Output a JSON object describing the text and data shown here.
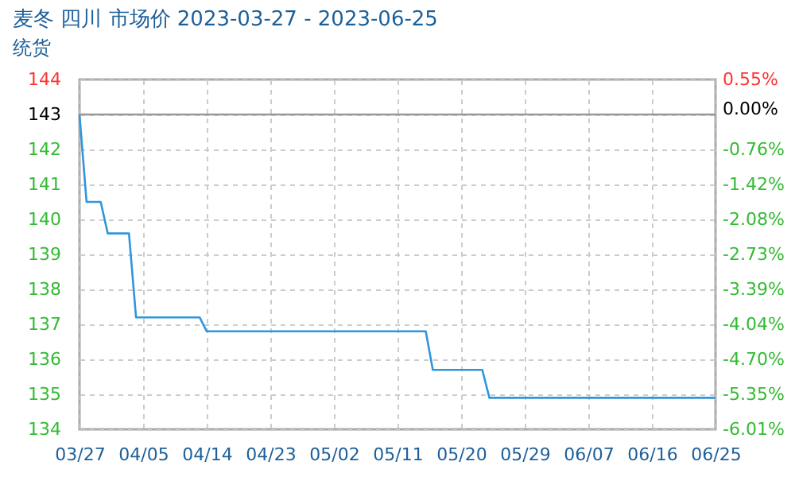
{
  "chart_data": {
    "type": "line",
    "title": "麦冬 四川 市场价 2023-03-27 - 2023-06-25",
    "subtitle": "统货",
    "x": [
      "2023-03-27",
      "2023-03-28",
      "2023-03-30",
      "2023-03-31",
      "2023-04-03",
      "2023-04-04",
      "2023-04-13",
      "2023-04-14",
      "2023-05-15",
      "2023-05-16",
      "2023-05-23",
      "2023-05-24",
      "2023-06-25"
    ],
    "series": [
      {
        "color": "#2f96dc",
        "values": [
          143,
          140.5,
          140.5,
          139.6,
          139.6,
          137.2,
          137.2,
          136.8,
          136.8,
          135.7,
          135.7,
          134.9,
          134.9
        ]
      }
    ],
    "xlim": [
      "2023-03-27",
      "2023-06-25"
    ],
    "xticks": [
      {
        "value": "2023-03-27",
        "label": "03/27"
      },
      {
        "value": "2023-04-05",
        "label": "04/05"
      },
      {
        "value": "2023-04-14",
        "label": "04/14"
      },
      {
        "value": "2023-04-23",
        "label": "04/23"
      },
      {
        "value": "2023-05-02",
        "label": "05/02"
      },
      {
        "value": "2023-05-11",
        "label": "05/11"
      },
      {
        "value": "2023-05-20",
        "label": "05/20"
      },
      {
        "value": "2023-05-29",
        "label": "05/29"
      },
      {
        "value": "2023-06-07",
        "label": "06/07"
      },
      {
        "value": "2023-06-16",
        "label": "06/16"
      },
      {
        "value": "2023-06-25",
        "label": "06/25"
      }
    ],
    "ylim": [
      134,
      144
    ],
    "yticks": [
      134,
      135,
      136,
      137,
      138,
      139,
      140,
      141,
      142,
      143,
      144
    ],
    "y2lim": [
      -6.01,
      0.55
    ],
    "y2ticks": [
      {
        "value": 0.55,
        "label": "0.55%"
      },
      {
        "value": 0,
        "label": "0.00%"
      },
      {
        "value": -0.76,
        "label": "-0.76%"
      },
      {
        "value": -1.42,
        "label": "-1.42%"
      },
      {
        "value": -2.08,
        "label": "-2.08%"
      },
      {
        "value": -2.73,
        "label": "-2.73%"
      },
      {
        "value": -3.39,
        "label": "-3.39%"
      },
      {
        "value": -4.04,
        "label": "-4.04%"
      },
      {
        "value": -4.7,
        "label": "-4.70%"
      },
      {
        "value": -5.35,
        "label": "-5.35%"
      },
      {
        "value": -6.01,
        "label": "-6.01%"
      }
    ],
    "ref_lines": [
      {
        "axis": "y",
        "value": 143,
        "color": "#999999"
      }
    ],
    "grid": true,
    "legend": false
  }
}
